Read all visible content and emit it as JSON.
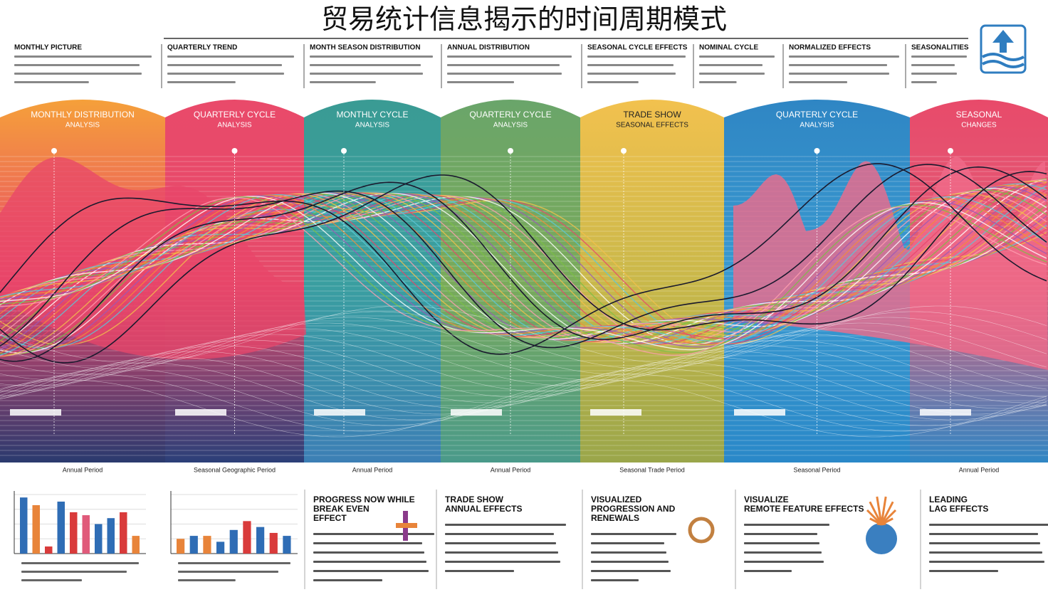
{
  "header": {
    "title": "贸易统计信息揭示的时间周期模式"
  },
  "top_notes": [
    "MONTHLY PICTURE",
    "QUARTERLY TREND",
    "MONTH SEASON DISTRIBUTION",
    "ANNUAL DISTRIBUTION",
    "SEASONAL CYCLE EFFECTS",
    "NOMINAL CYCLE",
    "NORMALIZED EFFECTS",
    "SEASONALITIES"
  ],
  "panels": [
    {
      "label": [
        "MONTHLY DISTRIBUTION",
        "ANALYSIS"
      ],
      "caption": "Annual Period"
    },
    {
      "label": [
        "QUARTERLY CYCLE",
        "ANALYSIS"
      ],
      "caption": "Seasonal Geographic Period"
    },
    {
      "label": [
        "MONTHLY CYCLE",
        "ANALYSIS"
      ],
      "caption": "Annual Period"
    },
    {
      "label": [
        "QUARTERLY CYCLE",
        "ANALYSIS"
      ],
      "caption": "Annual Period"
    },
    {
      "label": [
        "TRADE SHOW",
        "SEASONAL EFFECTS"
      ],
      "caption": "Seasonal Trade Period"
    },
    {
      "label": [
        "QUARTERLY CYCLE",
        "ANALYSIS"
      ],
      "caption": "Seasonal Period"
    },
    {
      "label": [
        "SEASONAL",
        "CHANGES"
      ],
      "caption": "Annual Period"
    }
  ],
  "bar_charts": [
    {
      "ylim": [
        0,
        100
      ],
      "values": [
        95,
        82,
        12,
        88,
        70,
        65,
        50,
        60,
        70,
        30
      ],
      "colors": [
        "#2f6db5",
        "#e8843a",
        "#d93b3b",
        "#2f6db5",
        "#d93b3b",
        "#e05a7a",
        "#2f6db5",
        "#2f6db5",
        "#d93b3b",
        "#e8843a"
      ]
    },
    {
      "ylim": [
        0,
        100
      ],
      "values": [
        25,
        30,
        30,
        20,
        40,
        55,
        45,
        35,
        30
      ],
      "colors": [
        "#e8843a",
        "#2f6db5",
        "#e8843a",
        "#2f6db5",
        "#2f6db5",
        "#d93b3b",
        "#2f6db5",
        "#d93b3b",
        "#2f6db5"
      ]
    }
  ],
  "cards": [
    {
      "heading": [
        "PROGRESS NOW WHILE",
        "BREAK EVEN",
        "EFFECT"
      ]
    },
    {
      "heading": [
        "TRADE SHOW",
        "ANNUAL EFFECTS"
      ]
    },
    {
      "heading": [
        "VISUALIZED",
        "PROGRESSION AND",
        "RENEWALS"
      ]
    },
    {
      "heading": [
        "VISUALIZE",
        "REMOTE FEATURE EFFECTS"
      ]
    },
    {
      "heading": [
        "LEADING",
        "LAG EFFECTS"
      ]
    }
  ]
}
